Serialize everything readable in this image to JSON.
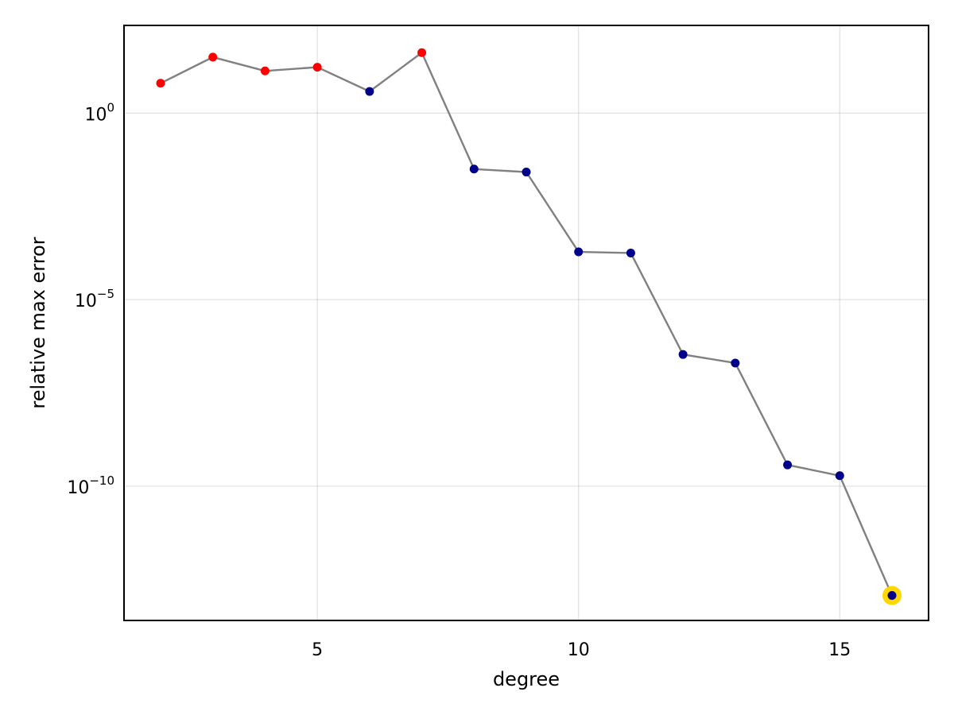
{
  "chart_data": {
    "type": "scatter",
    "xlabel": "degree",
    "ylabel": "relative max error",
    "y_scale": "log10",
    "grid": true,
    "xlim": [
      1.3,
      16.7
    ],
    "ylim_log10": [
      -13.6,
      2.35
    ],
    "x_ticks": [
      5,
      10,
      15
    ],
    "y_ticks": [
      {
        "base": "10",
        "exponent": "0",
        "log10": 0
      },
      {
        "base": "10",
        "exponent": "−5",
        "log10": -5
      },
      {
        "base": "10",
        "exponent": "−10",
        "log10": -10
      }
    ],
    "series": [
      {
        "x": [
          2,
          3,
          4,
          5,
          6,
          7,
          8,
          9,
          10,
          11,
          12,
          13,
          14,
          15,
          16
        ],
        "log10_y": [
          0.8,
          1.5,
          1.13,
          1.23,
          0.58,
          1.62,
          -1.5,
          -1.58,
          -3.72,
          -3.75,
          -6.47,
          -6.7,
          -9.43,
          -9.72,
          -12.93
        ],
        "point_colors": [
          "#ff0000",
          "#ff0000",
          "#ff0000",
          "#ff0000",
          "#00008b",
          "#ff0000",
          "#00008b",
          "#00008b",
          "#00008b",
          "#00008b",
          "#00008b",
          "#00008b",
          "#00008b",
          "#00008b",
          "#00008b"
        ],
        "line_color": "#808080"
      }
    ],
    "highlight": {
      "x": 16,
      "log10_y": -12.93,
      "color": "#ffd700"
    }
  }
}
